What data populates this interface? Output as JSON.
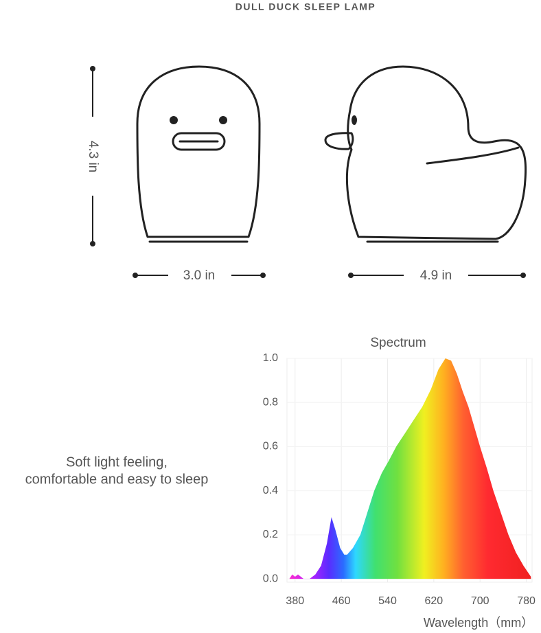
{
  "header": {
    "title": "DULL DUCK SLEEP LAMP"
  },
  "dimensions": {
    "height": "4.3 in",
    "front_width": "3.0 in",
    "side_width": "4.9 in"
  },
  "tagline": [
    "Soft light feeling,",
    "comfortable and easy to sleep"
  ],
  "chart_data": {
    "type": "area",
    "title": "Spectrum",
    "x_label": "Wavelength（mm）",
    "x": [
      370,
      375,
      380,
      385,
      390,
      395,
      405,
      415,
      425,
      435,
      443,
      450,
      458,
      465,
      470,
      480,
      493,
      505,
      517,
      530,
      543,
      555,
      570,
      585,
      600,
      615,
      628,
      640,
      650,
      660,
      670,
      680,
      690,
      700,
      712,
      723,
      736,
      749,
      762,
      775,
      788
    ],
    "values": [
      0.0,
      0.02,
      0.01,
      0.02,
      0.01,
      0.0,
      0.0,
      0.02,
      0.06,
      0.16,
      0.28,
      0.22,
      0.14,
      0.11,
      0.11,
      0.14,
      0.2,
      0.3,
      0.4,
      0.48,
      0.54,
      0.6,
      0.66,
      0.72,
      0.78,
      0.86,
      0.95,
      1.0,
      0.99,
      0.93,
      0.85,
      0.78,
      0.69,
      0.6,
      0.5,
      0.4,
      0.3,
      0.2,
      0.12,
      0.06,
      0.01
    ],
    "xlim": [
      366,
      790
    ],
    "ylim": [
      -0.015,
      1.0
    ],
    "xticks": [
      380,
      460,
      540,
      620,
      700,
      780
    ],
    "yticks": [
      {
        "value": 0,
        "label": "0.0"
      },
      {
        "value": 0.2,
        "label": "0.2"
      },
      {
        "value": 0.4,
        "label": "0.4"
      },
      {
        "value": 0.6,
        "label": "0.6"
      },
      {
        "value": 0.8,
        "label": "0.8"
      },
      {
        "value": 1,
        "label": "1.0"
      }
    ],
    "grid": true
  }
}
